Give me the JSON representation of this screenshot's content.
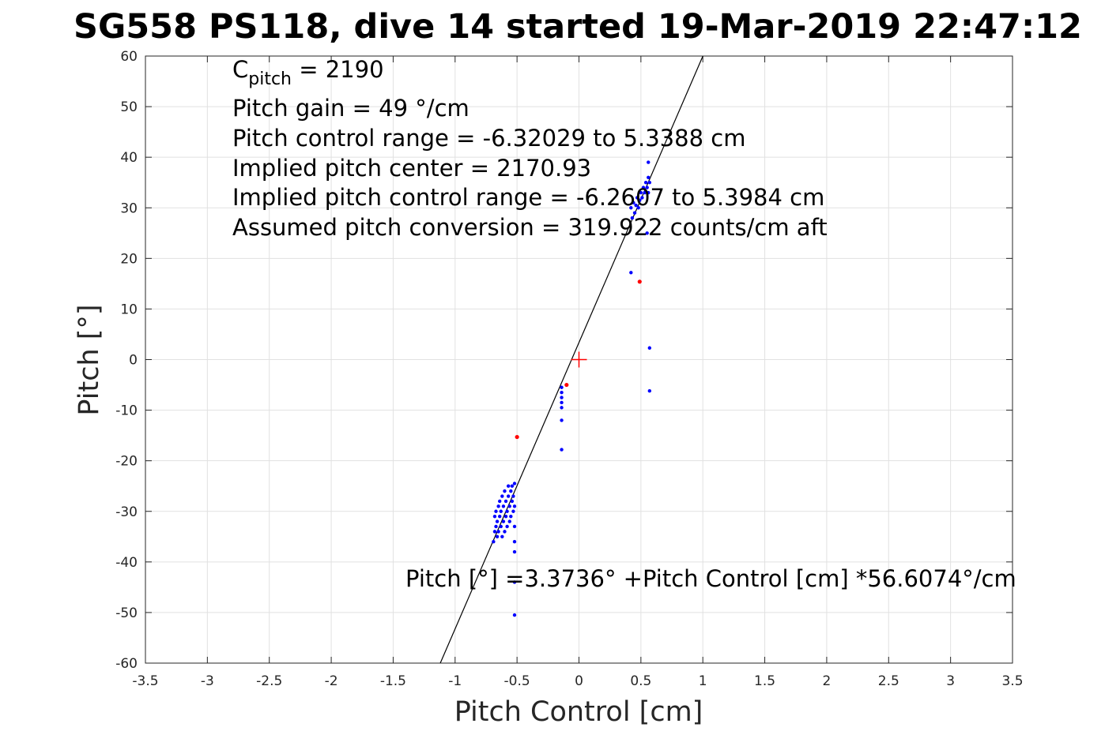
{
  "chart_data": {
    "type": "scatter",
    "title": "SG558 PS118, dive 14 started 19-Mar-2019 22:47:12",
    "xlabel": "Pitch Control [cm]",
    "ylabel": "Pitch [°]",
    "xlim": [
      -3.5,
      3.5
    ],
    "ylim": [
      -60,
      60
    ],
    "xticks": [
      -3.5,
      -3,
      -2.5,
      -2,
      -1.5,
      -1,
      -0.5,
      0,
      0.5,
      1,
      1.5,
      2,
      2.5,
      3,
      3.5
    ],
    "yticks": [
      -60,
      -50,
      -40,
      -30,
      -20,
      -10,
      0,
      10,
      20,
      30,
      40,
      50,
      60
    ],
    "xtick_labels": [
      "-3.5",
      "-3",
      "-2.5",
      "-2",
      "-1.5",
      "-1",
      "-0.5",
      "0",
      "0.5",
      "1",
      "1.5",
      "2",
      "2.5",
      "3",
      "3.5"
    ],
    "ytick_labels": [
      "-60",
      "-50",
      "-40",
      "-30",
      "-20",
      "-10",
      "0",
      "10",
      "20",
      "30",
      "40",
      "50",
      "60"
    ],
    "grid": true,
    "fit_line": {
      "intercept": 3.3736,
      "slope": 56.6074,
      "color": "#000000"
    },
    "center_marker": {
      "x": 0,
      "y": 0,
      "color": "#ff0000"
    },
    "series": [
      {
        "color": "#0000ff",
        "points": [
          [
            -0.69,
            -36
          ],
          [
            -0.68,
            -34
          ],
          [
            -0.68,
            -31
          ],
          [
            -0.67,
            -33
          ],
          [
            -0.67,
            -30
          ],
          [
            -0.66,
            -35
          ],
          [
            -0.66,
            -32
          ],
          [
            -0.65,
            -29
          ],
          [
            -0.65,
            -34
          ],
          [
            -0.64,
            -31
          ],
          [
            -0.64,
            -28
          ],
          [
            -0.63,
            -33
          ],
          [
            -0.63,
            -30
          ],
          [
            -0.62,
            -35
          ],
          [
            -0.62,
            -27
          ],
          [
            -0.61,
            -32
          ],
          [
            -0.61,
            -29
          ],
          [
            -0.6,
            -26
          ],
          [
            -0.6,
            -34
          ],
          [
            -0.59,
            -31
          ],
          [
            -0.59,
            -28
          ],
          [
            -0.58,
            -33
          ],
          [
            -0.58,
            -30
          ],
          [
            -0.57,
            -27
          ],
          [
            -0.57,
            -25
          ],
          [
            -0.56,
            -32
          ],
          [
            -0.56,
            -29
          ],
          [
            -0.55,
            -26
          ],
          [
            -0.55,
            -31
          ],
          [
            -0.54,
            -28
          ],
          [
            -0.54,
            -25
          ],
          [
            -0.53,
            -30
          ],
          [
            -0.53,
            -27
          ],
          [
            -0.52,
            -33
          ],
          [
            -0.52,
            -24.5
          ],
          [
            -0.52,
            -29
          ],
          [
            -0.52,
            -36
          ],
          [
            -0.52,
            -38
          ],
          [
            -0.52,
            -44
          ],
          [
            -0.52,
            -50.5
          ],
          [
            -0.14,
            -5.5
          ],
          [
            -0.14,
            -6.5
          ],
          [
            -0.14,
            -7.5
          ],
          [
            -0.14,
            -8.5
          ],
          [
            -0.14,
            -9.5
          ],
          [
            -0.14,
            -12
          ],
          [
            -0.14,
            -17.8
          ],
          [
            0.42,
            17.2
          ],
          [
            0.42,
            30
          ],
          [
            0.43,
            28
          ],
          [
            0.44,
            31
          ],
          [
            0.45,
            29
          ],
          [
            0.46,
            30.5
          ],
          [
            0.47,
            32
          ],
          [
            0.48,
            30
          ],
          [
            0.49,
            31.5
          ],
          [
            0.5,
            33
          ],
          [
            0.51,
            32
          ],
          [
            0.52,
            34
          ],
          [
            0.53,
            33
          ],
          [
            0.54,
            35
          ],
          [
            0.55,
            34
          ],
          [
            0.56,
            36
          ],
          [
            0.56,
            33
          ],
          [
            0.57,
            35
          ],
          [
            0.56,
            39
          ],
          [
            0.55,
            25
          ],
          [
            0.57,
            2.3
          ],
          [
            0.57,
            -6.2
          ]
        ]
      },
      {
        "color": "#ff0000",
        "points": [
          [
            -0.5,
            -15.3
          ],
          [
            -0.1,
            -5
          ],
          [
            0.49,
            15.4
          ]
        ]
      }
    ],
    "annotations": {
      "c_pitch_main": "C",
      "c_pitch_sub": "pitch",
      "c_pitch_value": " = 2190",
      "pitch_gain": "Pitch gain = 49 °/cm",
      "control_range": "Pitch control range = -6.32029 to 5.3388 cm",
      "implied_center": "Implied pitch center = 2170.93",
      "implied_range": "Implied pitch control range = -6.2607 to 5.3984 cm",
      "conversion": "Assumed pitch conversion = 319.922 counts/cm aft",
      "fit_equation": "Pitch [°] =3.3736° +Pitch Control [cm] *56.6074°/cm"
    }
  }
}
